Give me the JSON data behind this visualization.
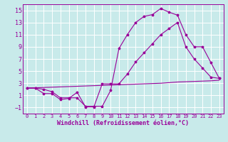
{
  "background_color": "#c8eaea",
  "grid_color": "#ffffff",
  "line_color": "#990099",
  "xlabel": "Windchill (Refroidissement éolien,°C)",
  "xlim": [
    -0.5,
    23.5
  ],
  "ylim": [
    -2,
    16
  ],
  "xticks": [
    0,
    1,
    2,
    3,
    4,
    5,
    6,
    7,
    8,
    9,
    10,
    11,
    12,
    13,
    14,
    15,
    16,
    17,
    18,
    19,
    20,
    21,
    22,
    23
  ],
  "yticks": [
    -1,
    1,
    3,
    5,
    7,
    9,
    11,
    13,
    15
  ],
  "curve1_x": [
    0,
    1,
    2,
    3,
    4,
    5,
    6,
    7,
    8,
    9,
    10,
    11,
    12,
    13,
    14,
    15,
    16,
    17,
    18,
    19,
    20,
    21,
    22,
    23
  ],
  "curve1_y": [
    2.2,
    2.2,
    2.0,
    1.6,
    0.6,
    0.6,
    0.6,
    -0.8,
    -0.8,
    -0.8,
    1.8,
    8.7,
    11.0,
    13.0,
    14.0,
    14.3,
    15.3,
    14.7,
    14.2,
    11.0,
    9.0,
    9.0,
    6.4,
    3.8
  ],
  "curve2_x": [
    0,
    1,
    2,
    3,
    4,
    5,
    6,
    7,
    8,
    9,
    10,
    11,
    12,
    13,
    14,
    15,
    16,
    17,
    18,
    19,
    20,
    21,
    22,
    23
  ],
  "curve2_y": [
    2.2,
    2.2,
    1.3,
    1.3,
    0.3,
    0.5,
    1.5,
    -0.9,
    -0.9,
    2.9,
    2.9,
    2.9,
    4.5,
    6.5,
    8.0,
    9.5,
    11.0,
    12.0,
    13.0,
    9.0,
    7.0,
    5.5,
    4.0,
    3.8
  ],
  "curve3_x": [
    0,
    1,
    2,
    3,
    4,
    5,
    6,
    7,
    8,
    9,
    10,
    11,
    12,
    13,
    14,
    15,
    16,
    17,
    18,
    19,
    20,
    21,
    22,
    23
  ],
  "curve3_y": [
    2.2,
    2.25,
    2.3,
    2.35,
    2.4,
    2.45,
    2.5,
    2.55,
    2.6,
    2.65,
    2.7,
    2.75,
    2.8,
    2.85,
    2.9,
    2.95,
    3.0,
    3.1,
    3.2,
    3.25,
    3.3,
    3.35,
    3.4,
    3.5
  ],
  "marker_size": 2.5,
  "lw": 0.8,
  "font_size_label": 6.0,
  "font_size_tick_x": 5.0,
  "font_size_tick_y": 6.0
}
